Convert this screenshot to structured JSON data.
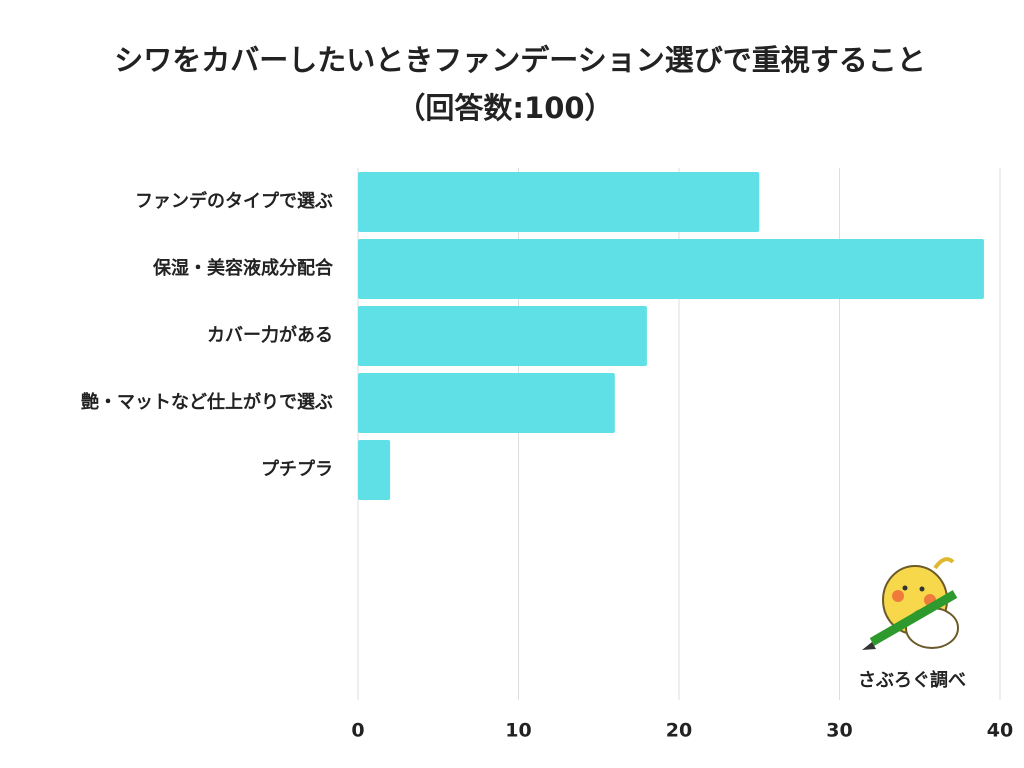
{
  "chart_data": {
    "type": "bar",
    "orientation": "horizontal",
    "title": "シワをカバーしたいときファンデーション選びで重視すること",
    "subtitle": "（回答数:100）",
    "categories": [
      "ファンデのタイプで選ぶ",
      "保湿・美容液成分配合",
      "カバー力がある",
      "艶・マットなど仕上がりで選ぶ",
      "プチプラ"
    ],
    "values": [
      25,
      39,
      18,
      16,
      2
    ],
    "color": "#5ee0e6",
    "xlim": [
      0,
      40
    ],
    "xticks": [
      0,
      10,
      20,
      30,
      40
    ],
    "grid": true,
    "source": "さぶろぐ調べ"
  }
}
